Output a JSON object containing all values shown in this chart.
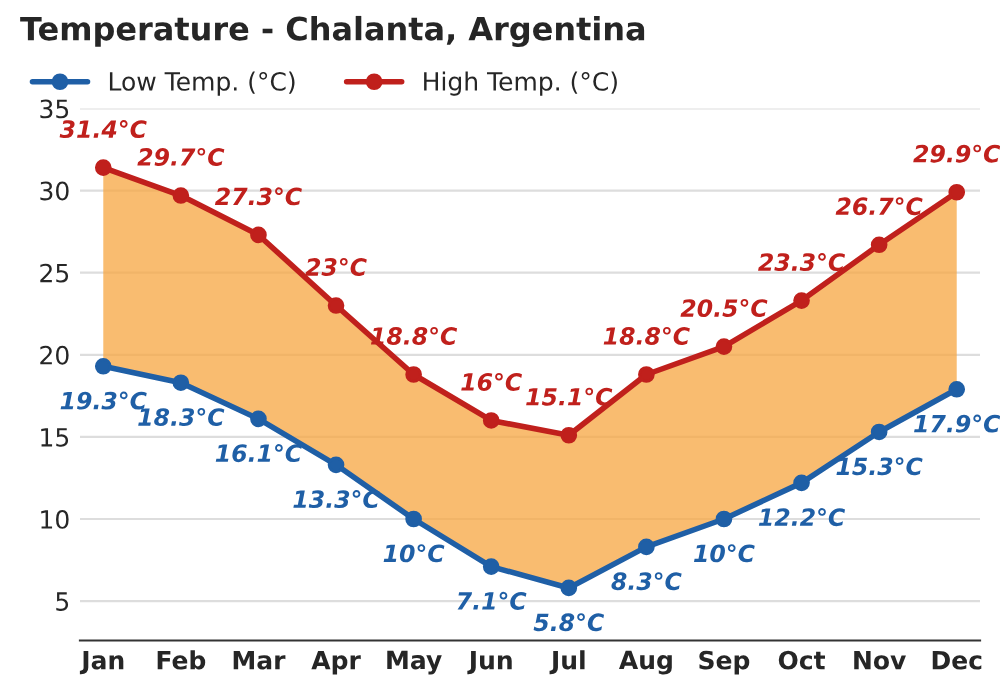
{
  "chart_data": {
    "type": "line",
    "title": "Temperature - Chalanta, Argentina",
    "categories": [
      "Jan",
      "Feb",
      "Mar",
      "Apr",
      "May",
      "Jun",
      "Jul",
      "Aug",
      "Sep",
      "Oct",
      "Nov",
      "Dec"
    ],
    "series": [
      {
        "name": "Low Temp. (°C)",
        "color": "#1f5fa6",
        "values": [
          19.3,
          18.3,
          16.1,
          13.3,
          10,
          7.1,
          5.8,
          8.3,
          10,
          12.2,
          15.3,
          17.9
        ],
        "value_labels": [
          "19.3°C",
          "18.3°C",
          "16.1°C",
          "13.3°C",
          "10°C",
          "7.1°C",
          "5.8°C",
          "8.3°C",
          "10°C",
          "12.2°C",
          "15.3°C",
          "17.9°C"
        ]
      },
      {
        "name": "High Temp. (°C)",
        "color": "#c0201c",
        "values": [
          31.4,
          29.7,
          27.3,
          23,
          18.8,
          16,
          15.1,
          18.8,
          20.5,
          23.3,
          26.7,
          29.9
        ],
        "value_labels": [
          "31.4°C",
          "29.7°C",
          "27.3°C",
          "23°C",
          "18.8°C",
          "16°C",
          "15.1°C",
          "18.8°C",
          "20.5°C",
          "23.3°C",
          "26.7°C",
          "29.9°C"
        ],
        "lower": [
          19.3,
          18.3,
          16.1,
          13.3,
          10,
          7.1,
          5.8,
          8.3,
          10,
          12.2,
          15.3,
          17.9
        ],
        "upper": [
          31.4,
          29.7,
          27.3,
          23,
          18.8,
          16,
          15.1,
          18.8,
          20.5,
          23.3,
          26.7,
          29.9
        ]
      }
    ],
    "ylim": [
      2.6,
      35
    ],
    "yticks": [
      5,
      10,
      15,
      20,
      25,
      30,
      35
    ],
    "grid": "y",
    "legend": "top left",
    "marker": "circle",
    "line_style": "solid"
  }
}
